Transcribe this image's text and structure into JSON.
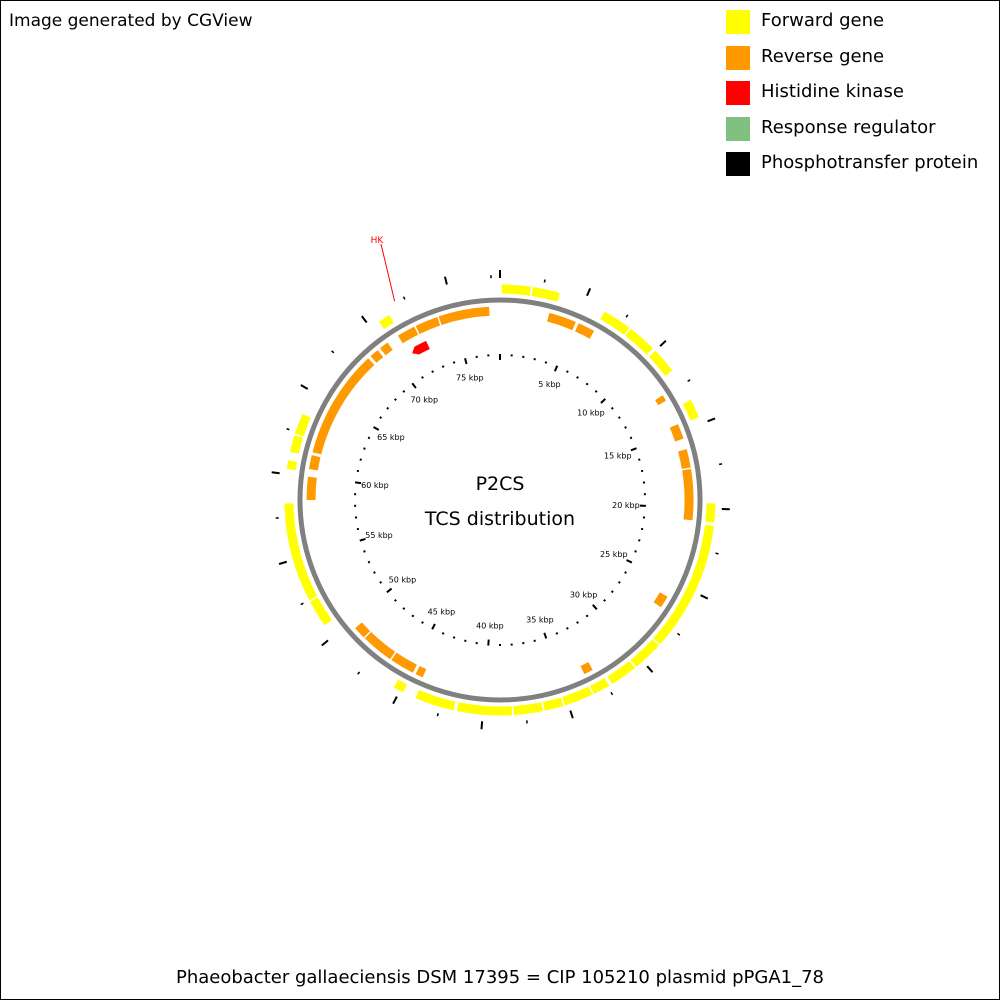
{
  "credit": "Image generated by CGView",
  "legend": [
    {
      "label": "Forward gene",
      "color": "#ffff00"
    },
    {
      "label": "Reverse gene",
      "color": "#ff9900"
    },
    {
      "label": "Histidine kinase",
      "color": "#ff0000"
    },
    {
      "label": "Response regulator",
      "color": "#80c080"
    },
    {
      "label": "Phosphotransfer protein",
      "color": "#000000"
    }
  ],
  "center_title": "P2CS",
  "center_subtitle": "TCS distribution",
  "caption": "Phaeobacter gallaeciensis DSM 17395 = CIP 105210 plasmid pPGA1_78",
  "genome": {
    "length_kbp": 78,
    "tick_labels": [
      "5 kbp",
      "10 kbp",
      "15 kbp",
      "20 kbp",
      "25 kbp",
      "30 kbp",
      "35 kbp",
      "40 kbp",
      "45 kbp",
      "50 kbp",
      "55 kbp",
      "60 kbp",
      "65 kbp",
      "70 kbp",
      "75 kbp"
    ],
    "backbone_color": "#808080"
  },
  "features": {
    "forward": [
      [
        0.1,
        1.8
      ],
      [
        1.9,
        3.5
      ],
      [
        6.3,
        8.0
      ],
      [
        8.1,
        9.8
      ],
      [
        10.0,
        11.5
      ],
      [
        13.5,
        14.6
      ],
      [
        19.7,
        20.8
      ],
      [
        21.0,
        28.6
      ],
      [
        28.7,
        30.5
      ],
      [
        30.6,
        32.2
      ],
      [
        32.4,
        33.4
      ],
      [
        33.5,
        35.2
      ],
      [
        35.3,
        36.4
      ],
      [
        36.5,
        38.2
      ],
      [
        38.3,
        41.5
      ],
      [
        41.7,
        44.0
      ],
      [
        44.8,
        45.4
      ],
      [
        50.8,
        52.4
      ],
      [
        52.5,
        58.3
      ],
      [
        60.3,
        60.8
      ],
      [
        61.3,
        62.3
      ],
      [
        62.4,
        63.6
      ],
      [
        70.6,
        71.3
      ]
    ],
    "reverse": [
      [
        3.2,
        5.0
      ],
      [
        5.2,
        6.3
      ],
      [
        12.4,
        12.8
      ],
      [
        14.5,
        15.5
      ],
      [
        16.2,
        17.4
      ],
      [
        17.5,
        20.8
      ],
      [
        26.0,
        26.8
      ],
      [
        32.8,
        33.4
      ],
      [
        44.1,
        44.6
      ],
      [
        44.8,
        46.4
      ],
      [
        46.5,
        48.6
      ],
      [
        48.7,
        49.5
      ],
      [
        58.5,
        60.0
      ],
      [
        60.5,
        61.4
      ],
      [
        61.6,
        68.7
      ],
      [
        68.9,
        69.5
      ],
      [
        69.7,
        70.3
      ],
      [
        71.1,
        72.3
      ],
      [
        72.4,
        73.9
      ],
      [
        74.0,
        77.3
      ]
    ],
    "histidine_kinase": [
      {
        "label": "HK",
        "start": 71.3,
        "end": 72.6
      }
    ]
  }
}
